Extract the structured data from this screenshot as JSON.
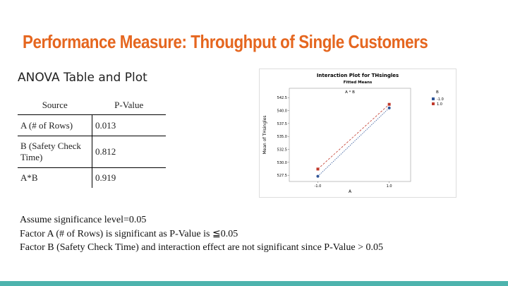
{
  "header": {
    "title": "Performance Measure: Throughput of Single Customers",
    "subtitle": "ANOVA Table and Plot"
  },
  "table": {
    "header": [
      "Source",
      "P-Value"
    ],
    "rows": [
      [
        "A (# of Rows)",
        "0.013"
      ],
      [
        "B (Safety Check Time)",
        "0.812"
      ],
      [
        "A*B",
        "0.919"
      ]
    ]
  },
  "plot": {
    "title": "Interaction Plot for THsingles",
    "subtitle": "Fitted Means",
    "panel": "A * B",
    "xlabel": "A",
    "ylabel": "Mean of THsingles",
    "xlim": [
      -1.8,
      1.6
    ],
    "ylim": [
      526.3,
      544.3
    ],
    "xticks": [
      {
        "value": -1,
        "label": "-1.0"
      },
      {
        "value": 1,
        "label": "1.0"
      }
    ],
    "yticks": [
      527.5,
      {
        "value": 530,
        "label": "530.0"
      },
      532.5,
      {
        "value": 535,
        "label": "535.0"
      },
      537.5,
      {
        "value": 540,
        "label": "540.0"
      },
      542.5
    ],
    "legend_title": "B",
    "series": [
      {
        "name": "-1.0",
        "color": "#2f5597",
        "x": [
          -1,
          1
        ],
        "values": [
          527.3,
          540.5
        ]
      },
      {
        "name": "1.0",
        "color": "#c0392b",
        "x": [
          -1,
          1
        ],
        "values": [
          528.7,
          541.2
        ]
      }
    ]
  },
  "notes": [
    "Assume significance level=0.05",
    "Factor A (# of Rows) is significant as P-Value is ≦0.05",
    "Factor B (Safety Check Time) and interaction effect are not significant since P-Value > 0.05"
  ]
}
